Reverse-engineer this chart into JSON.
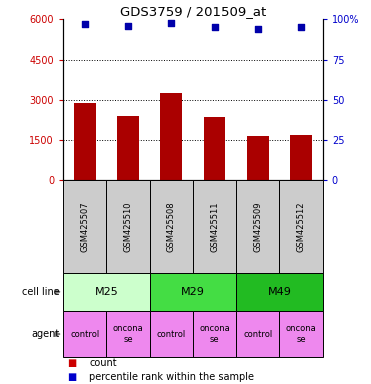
{
  "title": "GDS3759 / 201509_at",
  "samples": [
    "GSM425507",
    "GSM425510",
    "GSM425508",
    "GSM425511",
    "GSM425509",
    "GSM425512"
  ],
  "counts": [
    2900,
    2400,
    3250,
    2350,
    1650,
    1700
  ],
  "percentile_ranks": [
    97,
    96,
    97.5,
    95,
    94,
    95
  ],
  "cell_lines": [
    {
      "label": "M25",
      "span": [
        0,
        2
      ],
      "color": "#ccffcc"
    },
    {
      "label": "M29",
      "span": [
        2,
        4
      ],
      "color": "#44dd44"
    },
    {
      "label": "M49",
      "span": [
        4,
        6
      ],
      "color": "#22bb22"
    }
  ],
  "agents": [
    {
      "label": "control",
      "col": 0,
      "color": "#ee88ee"
    },
    {
      "label": "oncona\nse",
      "col": 1,
      "color": "#ee88ee"
    },
    {
      "label": "control",
      "col": 2,
      "color": "#ee88ee"
    },
    {
      "label": "oncona\nse",
      "col": 3,
      "color": "#ee88ee"
    },
    {
      "label": "control",
      "col": 4,
      "color": "#ee88ee"
    },
    {
      "label": "oncona\nse",
      "col": 5,
      "color": "#ee88ee"
    }
  ],
  "bar_color": "#aa0000",
  "dot_color": "#0000aa",
  "ylim_left": [
    0,
    6000
  ],
  "yticks_left": [
    0,
    1500,
    3000,
    4500,
    6000
  ],
  "ylim_right": [
    0,
    100
  ],
  "yticks_right": [
    0,
    25,
    50,
    75,
    100
  ],
  "left_tick_labels": [
    "0",
    "1500",
    "3000",
    "4500",
    "6000"
  ],
  "right_tick_labels": [
    "0",
    "25",
    "50",
    "75",
    "100%"
  ],
  "grid_values": [
    1500,
    3000,
    4500
  ],
  "left_color": "#cc0000",
  "right_color": "#0000cc",
  "bar_width": 0.5,
  "sample_box_color": "#cccccc",
  "legend_count_color": "#cc0000",
  "legend_pct_color": "#0000cc",
  "bg_color": "#ffffff"
}
